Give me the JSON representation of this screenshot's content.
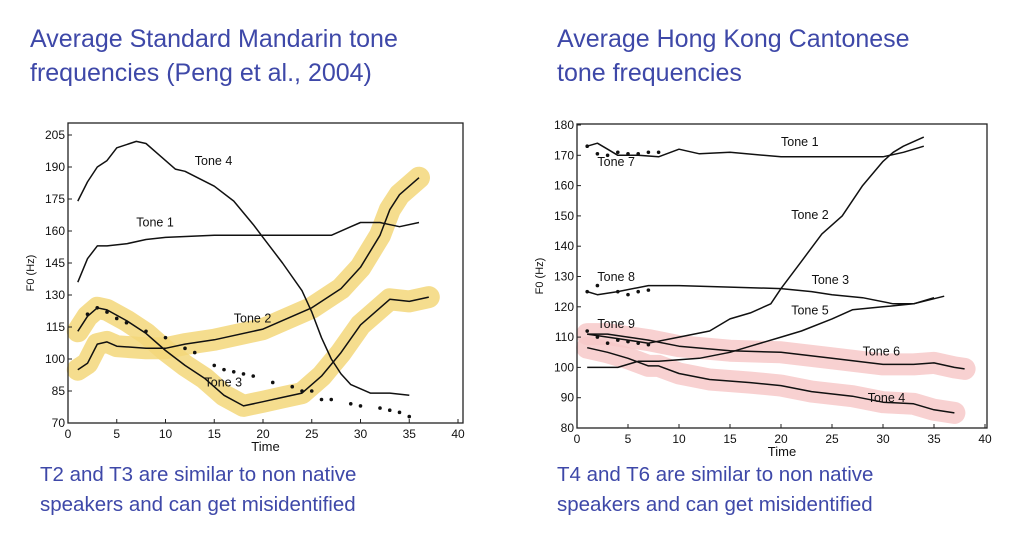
{
  "slide": {
    "left_title": "Average Standard Mandarin tone\nfrequencies (Peng et al., 2004)",
    "right_title": "Average Hong Kong Cantonese\ntone frequencies",
    "left_caption": "T2 and T3 are similar to non native\nspeakers and can get misidentified",
    "right_caption": "T4 and T6 are similar to non native\nspeakers and can get misidentified"
  },
  "colors": {
    "title": "#3e48a8",
    "mandarin_highlight": "#f3d77a",
    "cantonese_highlight": "#f7c9c9",
    "line": "#111111"
  },
  "chart_data": [
    {
      "type": "line",
      "xlabel": "Time",
      "ylabel": "F0 (Hz)",
      "xlim": [
        0,
        40
      ],
      "ylim": [
        70,
        205
      ],
      "xticks": [
        0,
        5,
        10,
        15,
        20,
        25,
        30,
        35,
        40
      ],
      "yticks": [
        70,
        85,
        100,
        115,
        130,
        145,
        160,
        175,
        190,
        205
      ],
      "grid": false,
      "series": [
        {
          "name": "Tone 1",
          "style": "solid",
          "label_at": [
            7,
            162
          ],
          "points": [
            [
              1,
              136
            ],
            [
              2,
              147
            ],
            [
              3,
              153
            ],
            [
              4,
              153
            ],
            [
              6,
              154
            ],
            [
              8,
              156
            ],
            [
              10,
              157
            ],
            [
              15,
              158
            ],
            [
              20,
              158
            ],
            [
              25,
              158
            ],
            [
              27,
              158
            ],
            [
              29,
              162
            ],
            [
              30,
              164
            ],
            [
              32,
              164
            ],
            [
              34,
              162
            ],
            [
              36,
              164
            ]
          ]
        },
        {
          "name": "Tone 4",
          "style": "solid",
          "label_at": [
            13,
            191
          ],
          "points": [
            [
              1,
              174
            ],
            [
              2,
              183
            ],
            [
              3,
              190
            ],
            [
              4,
              193
            ],
            [
              5,
              199
            ],
            [
              7,
              202
            ],
            [
              8,
              201
            ],
            [
              9,
              197
            ],
            [
              11,
              189
            ],
            [
              12,
              188
            ],
            [
              15,
              181
            ],
            [
              17,
              174
            ],
            [
              19,
              163
            ],
            [
              20,
              157
            ],
            [
              22,
              145
            ],
            [
              24,
              132
            ],
            [
              25,
              122
            ],
            [
              26,
              110
            ],
            [
              27,
              100
            ],
            [
              28,
              93
            ],
            [
              29,
              88
            ],
            [
              31,
              84
            ],
            [
              33,
              84
            ],
            [
              35,
              83
            ]
          ]
        },
        {
          "name": "Tone 2",
          "style": "solid",
          "highlight": true,
          "label_at": [
            17,
            117
          ],
          "points": [
            [
              1,
              95
            ],
            [
              2,
              98
            ],
            [
              3,
              107
            ],
            [
              4,
              108
            ],
            [
              5,
              106
            ],
            [
              8,
              105
            ],
            [
              10,
              105
            ],
            [
              12,
              107
            ],
            [
              15,
              109
            ],
            [
              20,
              114
            ],
            [
              22,
              118
            ],
            [
              25,
              124
            ],
            [
              28,
              133
            ],
            [
              30,
              143
            ],
            [
              32,
              158
            ],
            [
              33,
              170
            ],
            [
              34,
              177
            ],
            [
              36,
              185
            ]
          ]
        },
        {
          "name": "Tone 3",
          "style": "solid",
          "highlight": true,
          "label_at": [
            14,
            87
          ],
          "points": [
            [
              1,
              113
            ],
            [
              2,
              120
            ],
            [
              3,
              124
            ],
            [
              4,
              123
            ],
            [
              6,
              118
            ],
            [
              8,
              112
            ],
            [
              10,
              104
            ],
            [
              12,
              97
            ],
            [
              14,
              91
            ],
            [
              16,
              83
            ],
            [
              18,
              78
            ],
            [
              20,
              80
            ],
            [
              22,
              82
            ],
            [
              24,
              84
            ],
            [
              26,
              92
            ],
            [
              28,
              103
            ],
            [
              30,
              116
            ],
            [
              33,
              128
            ],
            [
              35,
              127
            ],
            [
              37,
              129
            ]
          ]
        },
        {
          "name": "",
          "style": "dotted",
          "points": [
            [
              2,
              121
            ],
            [
              3,
              124
            ],
            [
              4,
              122
            ],
            [
              5,
              119
            ],
            [
              6,
              117
            ],
            [
              8,
              113
            ],
            [
              10,
              110
            ],
            [
              12,
              105
            ],
            [
              13,
              103
            ],
            [
              15,
              97
            ],
            [
              16,
              95
            ],
            [
              17,
              94
            ],
            [
              18,
              93
            ],
            [
              19,
              92
            ],
            [
              21,
              89
            ],
            [
              23,
              87
            ],
            [
              24,
              85
            ],
            [
              25,
              85
            ],
            [
              26,
              81
            ],
            [
              27,
              81
            ],
            [
              29,
              79
            ],
            [
              30,
              78
            ],
            [
              32,
              77
            ],
            [
              33,
              76
            ],
            [
              34,
              75
            ],
            [
              35,
              73
            ]
          ]
        }
      ]
    },
    {
      "type": "line",
      "xlabel": "Time",
      "ylabel": "F0 (Hz)",
      "xlim": [
        0,
        40
      ],
      "ylim": [
        80,
        180
      ],
      "xticks": [
        0,
        5,
        10,
        15,
        20,
        25,
        30,
        35,
        40
      ],
      "yticks": [
        80,
        90,
        100,
        110,
        120,
        130,
        140,
        150,
        160,
        170,
        180
      ],
      "grid": false,
      "series": [
        {
          "name": "Tone 1",
          "style": "solid",
          "label_at": [
            20,
            173
          ],
          "points": [
            [
              1,
              173
            ],
            [
              2,
              174
            ],
            [
              3,
              172
            ],
            [
              4,
              170
            ],
            [
              6,
              170
            ],
            [
              8,
              169.5
            ],
            [
              10,
              172
            ],
            [
              12,
              170.5
            ],
            [
              15,
              171
            ],
            [
              20,
              169.5
            ],
            [
              25,
              169.5
            ],
            [
              30,
              169.5
            ],
            [
              32,
              171
            ],
            [
              34,
              173
            ]
          ]
        },
        {
          "name": "Tone 7",
          "style": "dotted",
          "label_at": [
            2,
            166.5
          ],
          "points": [
            [
              1,
              173
            ],
            [
              2,
              170.5
            ],
            [
              3,
              170
            ],
            [
              4,
              171
            ],
            [
              5,
              170.5
            ],
            [
              6,
              170.5
            ],
            [
              7,
              171
            ],
            [
              8,
              171
            ]
          ]
        },
        {
          "name": "Tone 2",
          "style": "solid",
          "label_at": [
            21,
            149
          ],
          "points": [
            [
              1,
              111
            ],
            [
              3,
              110
            ],
            [
              5,
              109
            ],
            [
              7,
              108
            ],
            [
              10,
              110
            ],
            [
              13,
              112
            ],
            [
              15,
              116
            ],
            [
              17,
              118
            ],
            [
              19,
              121
            ],
            [
              20,
              126
            ],
            [
              22,
              135
            ],
            [
              24,
              144
            ],
            [
              26,
              150
            ],
            [
              28,
              160
            ],
            [
              30,
              168
            ],
            [
              31,
              171
            ],
            [
              32,
              173
            ],
            [
              34,
              176
            ]
          ]
        },
        {
          "name": "Tone 3",
          "style": "solid",
          "label_at": [
            23,
            127.5
          ],
          "points": [
            [
              1,
              125
            ],
            [
              2,
              124
            ],
            [
              4,
              125
            ],
            [
              7,
              127
            ],
            [
              10,
              127
            ],
            [
              15,
              126.5
            ],
            [
              20,
              126
            ],
            [
              23,
              125
            ],
            [
              25,
              124
            ],
            [
              28,
              123
            ],
            [
              31,
              121
            ],
            [
              33,
              121
            ],
            [
              36,
              123.5
            ]
          ]
        },
        {
          "name": "Tone 8",
          "style": "dotted",
          "label_at": [
            2,
            128.5
          ],
          "points": [
            [
              1,
              125
            ],
            [
              2,
              127
            ],
            [
              4,
              125
            ],
            [
              5,
              124
            ],
            [
              6,
              125
            ],
            [
              7,
              125.5
            ]
          ]
        },
        {
          "name": "Tone 5",
          "style": "solid",
          "label_at": [
            21,
            117.5
          ],
          "points": [
            [
              1,
              100
            ],
            [
              4,
              100
            ],
            [
              6,
              102
            ],
            [
              8,
              102
            ],
            [
              12,
              103
            ],
            [
              15,
              105
            ],
            [
              17,
              107
            ],
            [
              20,
              110
            ],
            [
              22,
              112
            ],
            [
              25,
              116
            ],
            [
              27,
              119
            ],
            [
              30,
              120
            ],
            [
              33,
              121
            ],
            [
              35,
              123
            ]
          ]
        },
        {
          "name": "Tone 9",
          "style": "dotted",
          "label_at": [
            2,
            113
          ],
          "points": [
            [
              1,
              112
            ],
            [
              2,
              110
            ],
            [
              3,
              108
            ],
            [
              4,
              109
            ],
            [
              5,
              108.5
            ],
            [
              6,
              108
            ],
            [
              7,
              107.5
            ]
          ]
        },
        {
          "name": "Tone 6",
          "style": "solid",
          "highlight": true,
          "label_at": [
            28,
            104
          ],
          "points": [
            [
              1,
              111
            ],
            [
              3,
              111
            ],
            [
              5,
              110
            ],
            [
              7,
              109
            ],
            [
              10,
              107
            ],
            [
              15,
              105.5
            ],
            [
              20,
              105
            ],
            [
              25,
              103
            ],
            [
              30,
              101
            ],
            [
              33,
              101
            ],
            [
              35,
              101.5
            ],
            [
              37,
              100
            ],
            [
              38,
              99.5
            ]
          ]
        },
        {
          "name": "Tone 4",
          "style": "solid",
          "highlight": true,
          "label_at": [
            28.5,
            88.5
          ],
          "points": [
            [
              1,
              106.5
            ],
            [
              3,
              105
            ],
            [
              5,
              103
            ],
            [
              7,
              100.5
            ],
            [
              8,
              100.5
            ],
            [
              10,
              98
            ],
            [
              13,
              96
            ],
            [
              17,
              95
            ],
            [
              20,
              94
            ],
            [
              23,
              92
            ],
            [
              27,
              90.5
            ],
            [
              30,
              88.5
            ],
            [
              33,
              88
            ],
            [
              35,
              86
            ],
            [
              37,
              85
            ]
          ]
        }
      ]
    }
  ]
}
